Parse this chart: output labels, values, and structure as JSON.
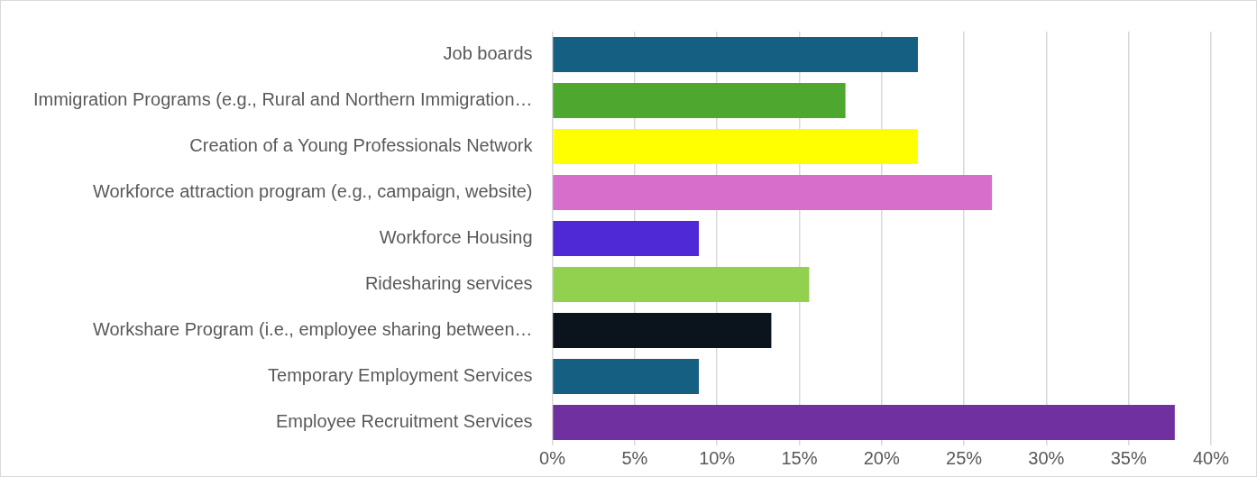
{
  "chart_data": {
    "type": "bar",
    "orientation": "horizontal",
    "categories": [
      "Job boards",
      "Immigration Programs (e.g., Rural and Northern Immigration…",
      "Creation of a Young Professionals Network",
      "Workforce attraction program (e.g., campaign, website)",
      "Workforce Housing",
      "Ridesharing services",
      "Workshare Program (i.e., employee sharing between…",
      "Temporary Employment Services",
      "Employee Recruitment Services"
    ],
    "values": [
      22.2,
      17.8,
      22.2,
      26.7,
      8.9,
      15.6,
      13.3,
      8.9,
      37.8
    ],
    "colors": [
      "#156082",
      "#4ea72e",
      "#ffff00",
      "#d86ecc",
      "#5029d6",
      "#92d050",
      "#0b131c",
      "#156082",
      "#7030a0"
    ],
    "xlim": [
      0,
      40
    ],
    "xticks": [
      {
        "value": 0,
        "label": "0%"
      },
      {
        "value": 5,
        "label": "5%"
      },
      {
        "value": 10,
        "label": "10%"
      },
      {
        "value": 15,
        "label": "15%"
      },
      {
        "value": 20,
        "label": "20%"
      },
      {
        "value": 25,
        "label": "25%"
      },
      {
        "value": 30,
        "label": "30%"
      },
      {
        "value": 35,
        "label": "35%"
      },
      {
        "value": 40,
        "label": "40%"
      }
    ],
    "grid": "x"
  }
}
